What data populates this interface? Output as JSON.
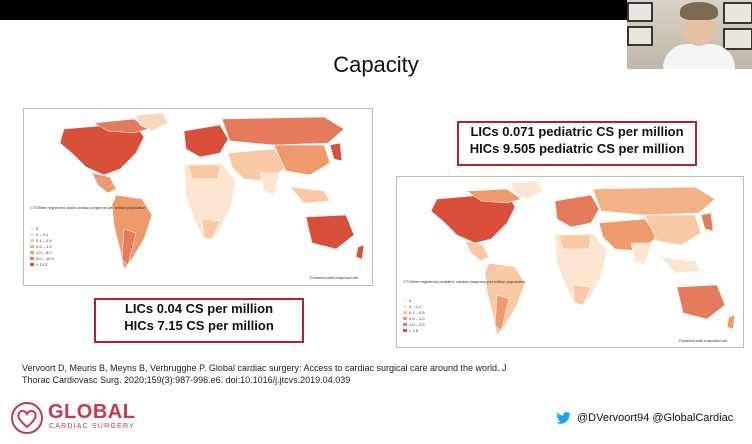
{
  "slide": {
    "title": "Capacity"
  },
  "left_map": {
    "legend_title": "CT/Other registered adult cardiac surgeons per million population",
    "legend_items": [
      "0",
      "0 – 0.1",
      "0.1 – 0.5",
      "0.5 – 1.0",
      "1.0 – 5.0",
      "5.0 – 10.0",
      "> 10.0"
    ],
    "footer": "Powered with mapchart.net"
  },
  "right_map": {
    "legend_title": "CT/Other registered pediatric cardiac surgeons per million population",
    "legend_items": [
      "0",
      "0 – 0.1",
      "0.1 – 0.5",
      "0.5 – 1.0",
      "1.0 – 2.5",
      "> 2.5"
    ],
    "footer": "Powered with mapchart.net"
  },
  "adult_stats": {
    "line1": "LICs 0.04 CS per million",
    "line2": "HICs 7.15 CS per million"
  },
  "pediatric_stats": {
    "line1": "LICs 0.071 pediatric CS per million",
    "line2": "HICs 9.505 pediatric CS per million"
  },
  "citation": {
    "line1": "Vervoort D, Meuris B, Meyns B, Verbrugghe P. Global cardiac surgery: Access to cardiac surgical care around the world. J",
    "line2": "Thorac Cardiovasc Surg. 2020;159(3):987-996.e6. doi:10.1016/j.jtcvs.2019.04.039"
  },
  "logo": {
    "main": "GLOBAL",
    "sub": "CARDIAC SURGERY"
  },
  "social": {
    "handles": "@DVervoort94 @GlobalCardiac"
  },
  "colors": {
    "accent_red": "#b0242b",
    "map_dark": "#d9503a",
    "map_mid": "#ef9a6d",
    "map_light": "#f8c9a4",
    "map_pale": "#fce6d2",
    "logo_pink": "#c63a4e",
    "twitter_blue": "#1da1f2"
  },
  "icons": {
    "twitter": "twitter-icon",
    "logo_heart": "globe-heart-icon"
  }
}
